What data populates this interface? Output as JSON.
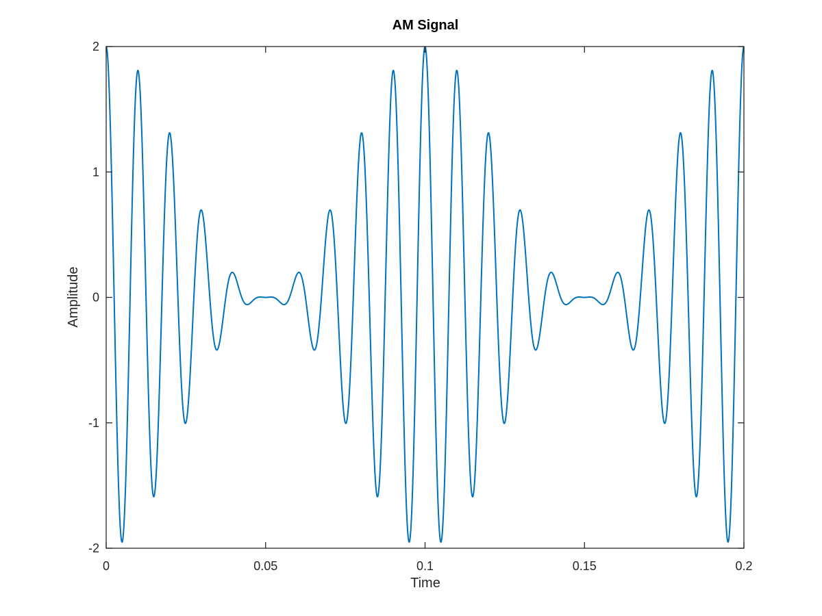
{
  "chart_data": {
    "type": "line",
    "title": "AM Signal",
    "xlabel": "Time",
    "ylabel": "Amplitude",
    "xlim": [
      0,
      0.2
    ],
    "ylim": [
      -2,
      2
    ],
    "x_ticks": [
      0,
      0.05,
      0.1,
      0.15,
      0.2
    ],
    "x_tick_labels": [
      "0",
      "0.05",
      "0.1",
      "0.15",
      "0.2"
    ],
    "y_ticks": [
      -2,
      -1,
      0,
      1,
      2
    ],
    "y_tick_labels": [
      "-2",
      "-1",
      "0",
      "1",
      "2"
    ],
    "grid": false,
    "legend": "none",
    "line_color": "#0072BD",
    "series": [
      {
        "x_start": 0,
        "x_end": 0.2,
        "sample_count": 2001,
        "formula": "(1 + cos(2*pi*10*t)) * cos(2*pi*100*t)",
        "carrier_frequency_hz": 100,
        "modulation_frequency_hz": 10,
        "modulation_index": 1,
        "carrier_amplitude": 1
      }
    ]
  }
}
